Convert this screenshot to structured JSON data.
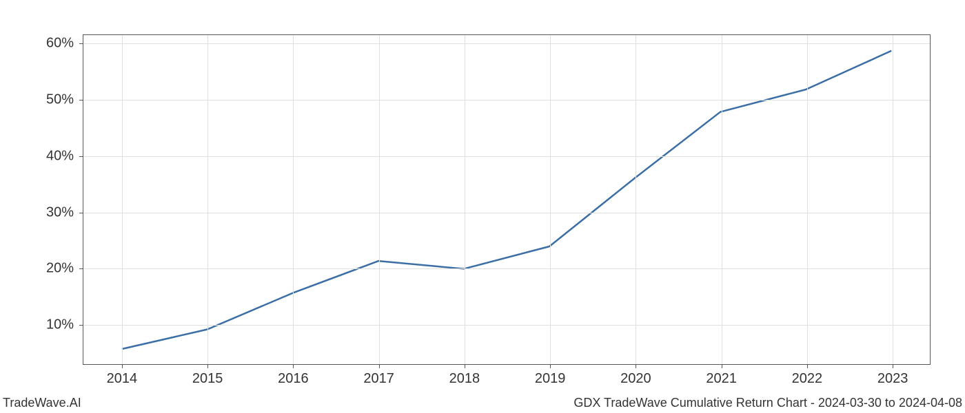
{
  "chart": {
    "type": "line",
    "x_values": [
      2014,
      2015,
      2016,
      2017,
      2018,
      2019,
      2020,
      2021,
      2022,
      2023
    ],
    "y_values": [
      5.5,
      9.0,
      15.5,
      21.2,
      19.8,
      23.8,
      36.0,
      47.8,
      51.8,
      58.7
    ],
    "x_tick_labels": [
      "2014",
      "2015",
      "2016",
      "2017",
      "2018",
      "2019",
      "2020",
      "2021",
      "2022",
      "2023"
    ],
    "y_ticks": [
      10,
      20,
      30,
      40,
      50,
      60
    ],
    "y_tick_labels": [
      "10%",
      "20%",
      "30%",
      "40%",
      "50%",
      "60%"
    ],
    "xlim": [
      2013.55,
      2023.45
    ],
    "ylim": [
      2.8,
      61.5
    ],
    "line_color": "#3b6ea5",
    "line_width": 2.5,
    "grid_color": "#e0e0e0",
    "background_color": "#ffffff",
    "axis_color": "#555555",
    "tick_label_fontsize": 20,
    "tick_label_color": "#333333",
    "footer_fontsize": 18
  },
  "footer": {
    "left": "TradeWave.AI",
    "right": "GDX TradeWave Cumulative Return Chart - 2024-03-30 to 2024-04-08"
  }
}
